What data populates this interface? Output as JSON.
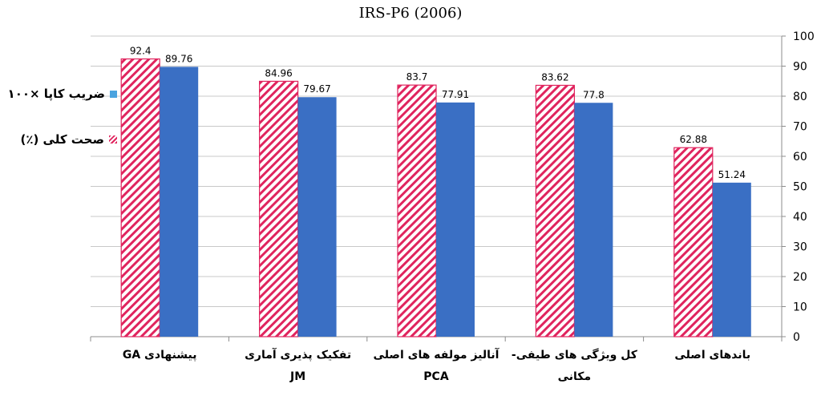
{
  "chart_data": {
    "type": "bar",
    "title": "IRS-P6 (2006)",
    "categories": [
      [
        "پیشنهادی  GA"
      ],
      [
        "تفکیک پذیری آماری",
        "JM"
      ],
      [
        "آنالیز مولفه های اصلی",
        "PCA"
      ],
      [
        "کل ویژگی های طیفی-",
        "مکانی"
      ],
      [
        "باندهای اصلی"
      ]
    ],
    "series": [
      {
        "name": "صحت کلی (٪)",
        "values": [
          92.4,
          84.96,
          83.7,
          83.62,
          62.88
        ],
        "value_labels": [
          "92.4",
          "84.96",
          "83.7",
          "83.62",
          "62.88"
        ],
        "color": "#e0245e",
        "pattern": "hatch"
      },
      {
        "name": "ضریب کاپا ×۱۰۰",
        "values": [
          89.76,
          79.67,
          77.91,
          77.8,
          51.24
        ],
        "value_labels": [
          "89.76",
          "79.67",
          "77.91",
          "77.8",
          "51.24"
        ],
        "color": "#3a6fc4",
        "pattern": "solid"
      }
    ],
    "ylim": [
      0,
      100
    ],
    "yticks": [
      0,
      10,
      20,
      30,
      40,
      50,
      60,
      70,
      80,
      90,
      100
    ],
    "y_axis_side": "right",
    "grid": true,
    "legend_position": "left"
  }
}
